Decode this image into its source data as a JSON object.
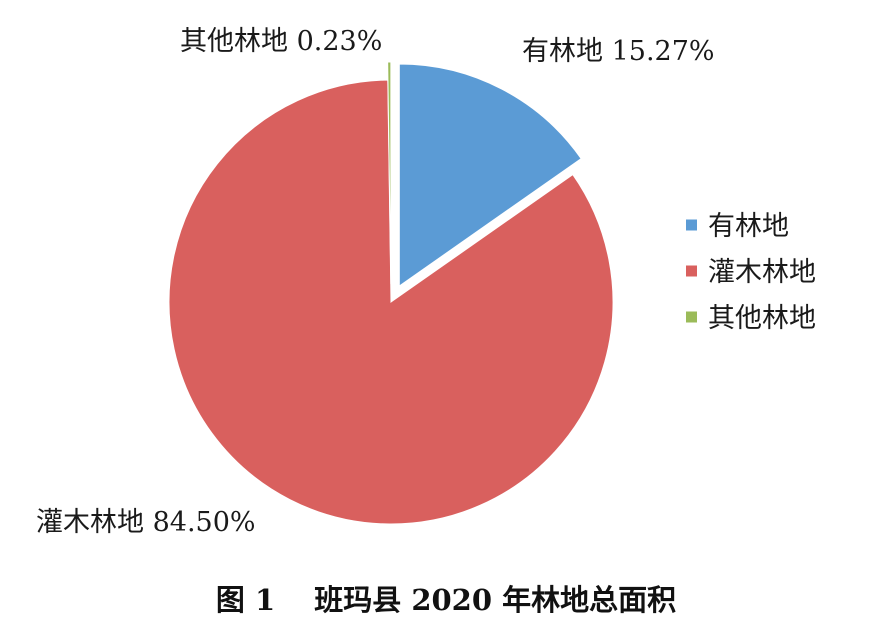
{
  "caption": "图 1　 班玛县 2020 年林地总面积",
  "chart_data": {
    "type": "pie",
    "title": "",
    "slices": [
      {
        "name": "有林地",
        "value": 15.27,
        "label": "有林地 15.27%",
        "color": "#5b9bd5",
        "exploded": true
      },
      {
        "name": "灌木林地",
        "value": 84.5,
        "label": "灌木林地 84.50%",
        "color": "#d9605e",
        "exploded": false
      },
      {
        "name": "其他林地",
        "value": 0.23,
        "label": "其他林地 0.23%",
        "color": "#9bbb59",
        "exploded": true
      }
    ],
    "legend": {
      "position": "right",
      "items": [
        "有林地",
        "灌木林地",
        "其他林地"
      ]
    },
    "start_angle_deg": 0,
    "direction": "clockwise"
  }
}
